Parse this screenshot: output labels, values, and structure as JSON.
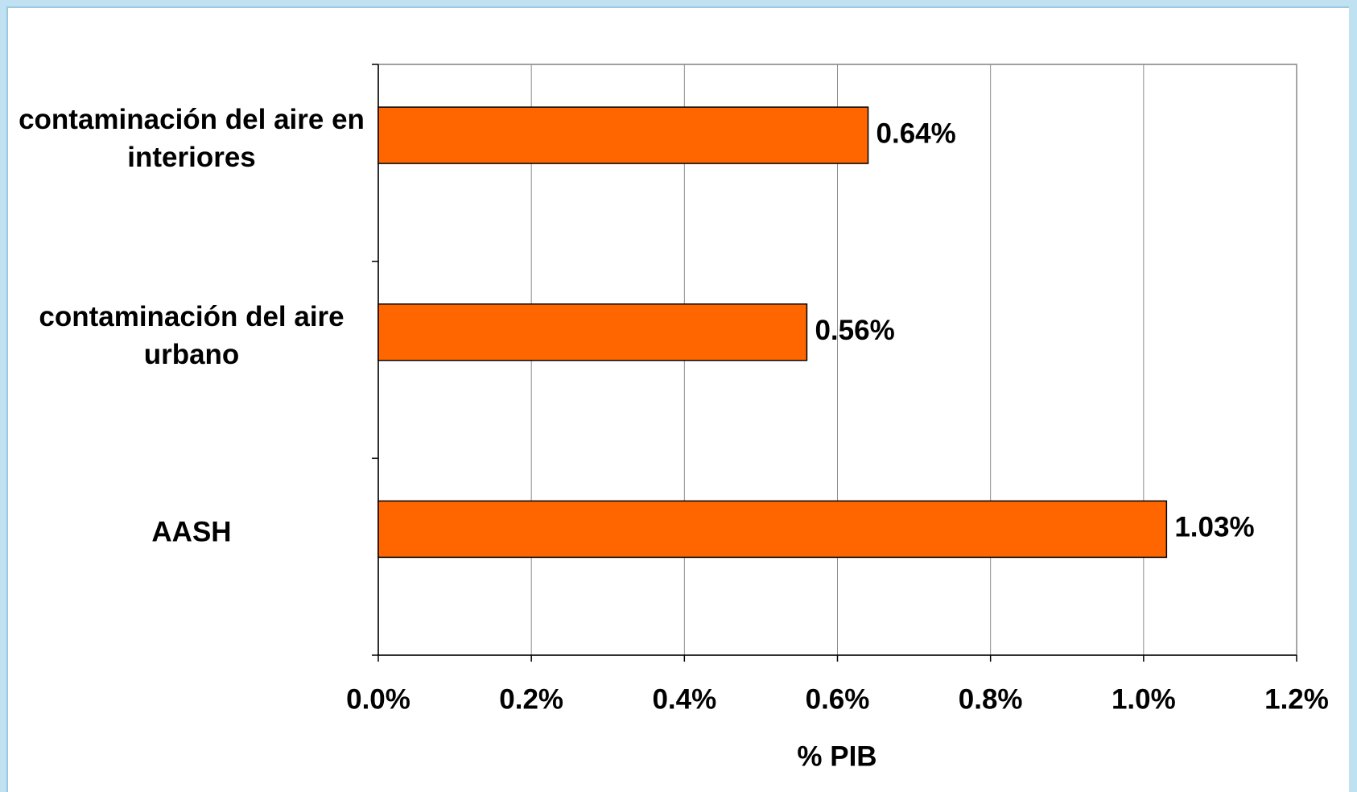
{
  "chart_data": {
    "type": "bar",
    "orientation": "horizontal",
    "categories": [
      "contaminación del aire en interiores",
      "contaminación del aire urbano",
      "AASH"
    ],
    "values": [
      0.64,
      0.56,
      1.03
    ],
    "value_labels": [
      "0.64%",
      "0.56%",
      "1.03%"
    ],
    "color": "#ff6600",
    "xlim": [
      0,
      1.2
    ],
    "xticks": [
      {
        "value": 0,
        "label": "0.0%"
      },
      {
        "value": 0.2,
        "label": "0.2%"
      },
      {
        "value": 0.4,
        "label": "0.4%"
      },
      {
        "value": 0.6,
        "label": "0.6%"
      },
      {
        "value": 0.8,
        "label": "0.8%"
      },
      {
        "value": 1.0,
        "label": "1.0%"
      },
      {
        "value": 1.2,
        "label": "1.2%"
      }
    ],
    "xlabel": "% PIB",
    "grid": true
  }
}
